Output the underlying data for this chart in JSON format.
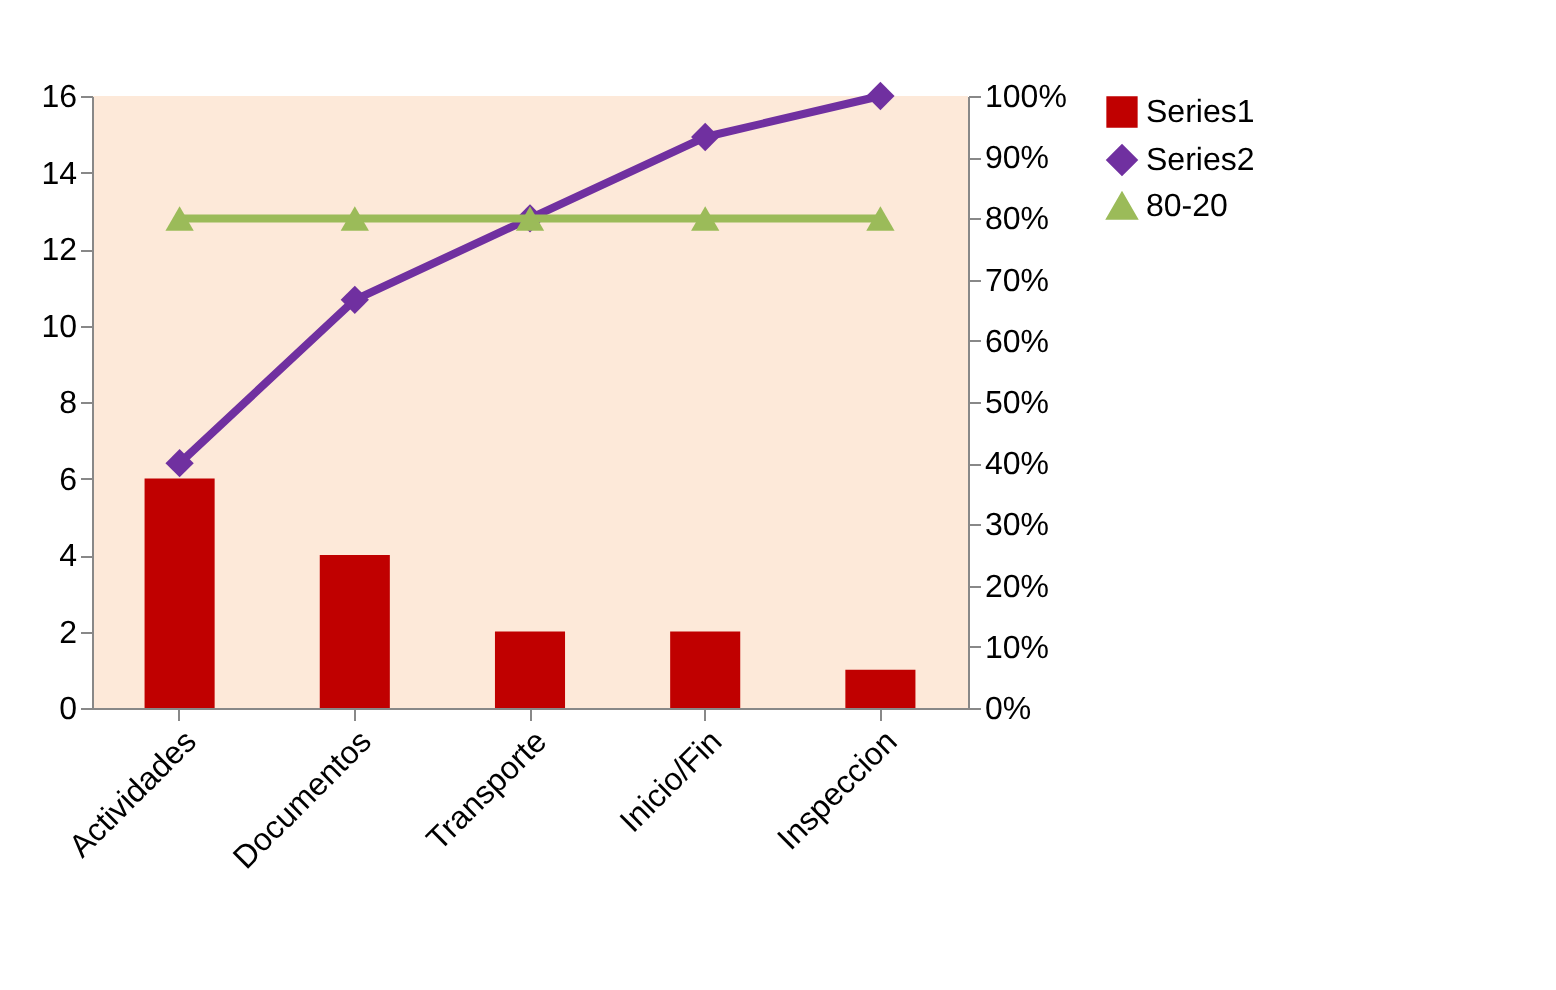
{
  "chart_data": {
    "type": "bar",
    "categories": [
      "Actividades",
      "Documentos",
      "Transporte",
      "Inicio/Fin",
      "Inspeccion"
    ],
    "series": [
      {
        "name": "Series1",
        "color": "#c00000",
        "values": [
          6,
          4,
          2,
          2,
          1
        ]
      },
      {
        "name": "Series2",
        "color": "#7030a0",
        "type": "line",
        "axis": "y2",
        "marker": "diamond",
        "values": [
          40,
          66.7,
          80,
          93.3,
          100
        ]
      },
      {
        "name": "80-20",
        "color": "#9bbb59",
        "type": "line",
        "axis": "y2",
        "marker": "triangle",
        "values": [
          80,
          80,
          80,
          80,
          80
        ]
      }
    ],
    "ylim": [
      0,
      16
    ],
    "yticks": [
      0,
      2,
      4,
      6,
      8,
      10,
      12,
      14,
      16
    ],
    "y2lim": [
      0,
      100
    ],
    "y2ticks": [
      {
        "value": 0,
        "label": "0%"
      },
      {
        "value": 10,
        "label": "10%"
      },
      {
        "value": 20,
        "label": "20%"
      },
      {
        "value": 30,
        "label": "30%"
      },
      {
        "value": 40,
        "label": "40%"
      },
      {
        "value": 50,
        "label": "50%"
      },
      {
        "value": 60,
        "label": "60%"
      },
      {
        "value": 70,
        "label": "70%"
      },
      {
        "value": 80,
        "label": "80%"
      },
      {
        "value": 90,
        "label": "90%"
      },
      {
        "value": 100,
        "label": "100%"
      }
    ],
    "grid": false,
    "legend": "right"
  }
}
